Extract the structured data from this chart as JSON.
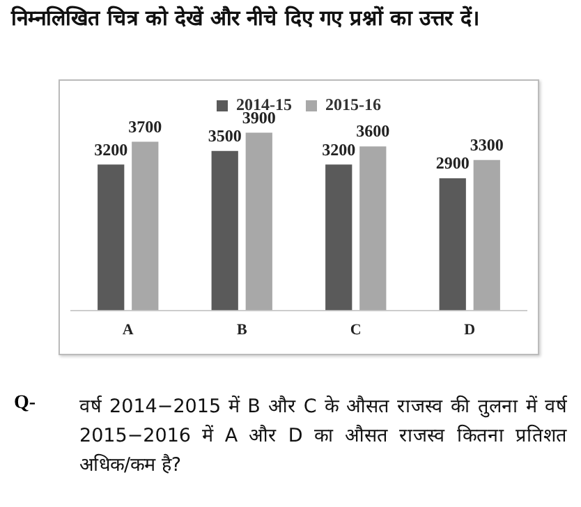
{
  "chart_data": {
    "type": "bar",
    "title": "निम्नलिखित चित्र को देखें और नीचे दिए गए प्रश्नों का उत्तर दें।",
    "categories": [
      "A",
      "B",
      "C",
      "D"
    ],
    "series": [
      {
        "name": "2014-15",
        "color": "#5a5a5a",
        "values": [
          3200,
          3500,
          3200,
          2900
        ]
      },
      {
        "name": "2015-16",
        "color": "#a8a8a8",
        "values": [
          3700,
          3900,
          3600,
          3300
        ]
      }
    ],
    "tick_labels": "x",
    "data_labels": true,
    "grid": false,
    "legend": "top",
    "annotations": [
      "Q-",
      "वर्ष 2014−2015 में B और C के औसत राजस्व की तुलना में वर्ष 2015−2016 में A और D का औसत राजस्व कितना प्रतिशत अधिक/कम है?"
    ]
  }
}
